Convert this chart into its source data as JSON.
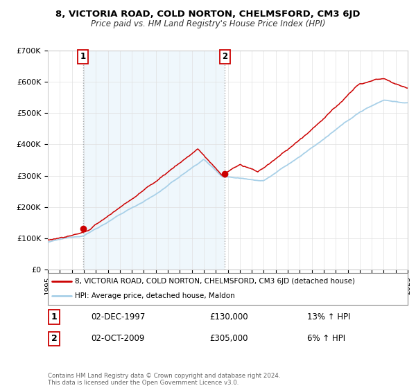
{
  "title": "8, VICTORIA ROAD, COLD NORTON, CHELMSFORD, CM3 6JD",
  "subtitle": "Price paid vs. HM Land Registry's House Price Index (HPI)",
  "legend_line1": "8, VICTORIA ROAD, COLD NORTON, CHELMSFORD, CM3 6JD (detached house)",
  "legend_line2": "HPI: Average price, detached house, Maldon",
  "annotation1_date": "02-DEC-1997",
  "annotation1_price": "£130,000",
  "annotation1_hpi": "13% ↑ HPI",
  "annotation2_date": "02-OCT-2009",
  "annotation2_price": "£305,000",
  "annotation2_hpi": "6% ↑ HPI",
  "footer": "Contains HM Land Registry data © Crown copyright and database right 2024.\nThis data is licensed under the Open Government Licence v3.0.",
  "sale1_year": 1997.92,
  "sale1_value": 130000,
  "sale2_year": 2009.75,
  "sale2_value": 305000,
  "ylim": [
    0,
    700000
  ],
  "xlim_start": 1995,
  "xlim_end": 2025,
  "hpi_color": "#a8d0e8",
  "price_color": "#cc0000",
  "vline_color": "#bbbbbb",
  "fill_color": "#ddeeff",
  "background_color": "#ffffff",
  "grid_color": "#e0e0e0"
}
